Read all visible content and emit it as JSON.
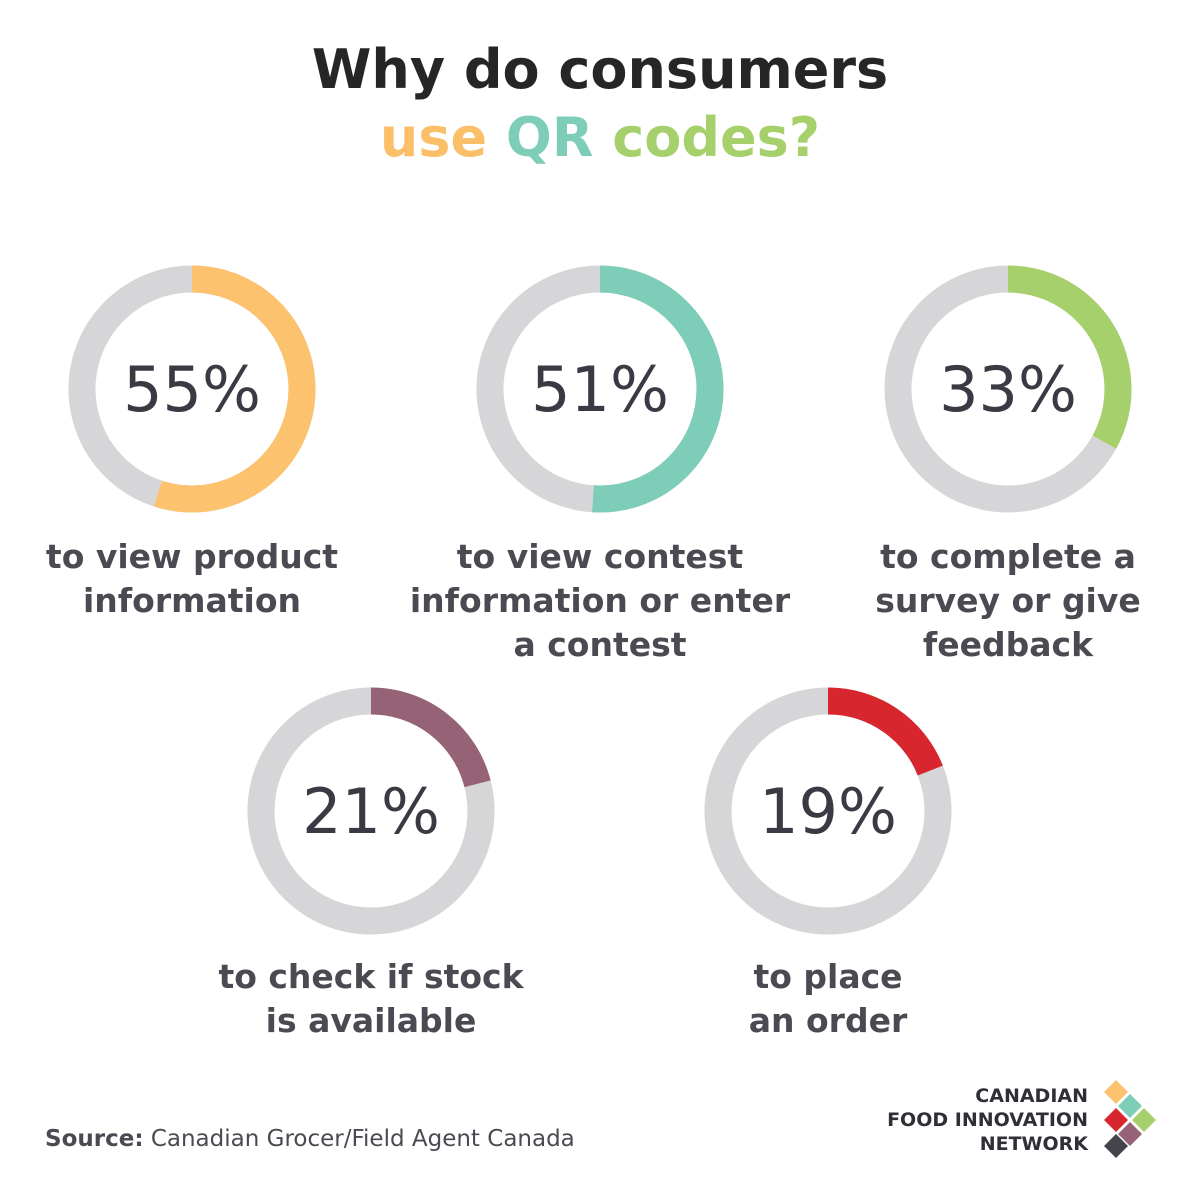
{
  "title": {
    "line1": "Why do consumers",
    "line2_parts": [
      {
        "text": "use",
        "color": "#fbbf6a"
      },
      {
        "text": "QR",
        "color": "#7ecdb8"
      },
      {
        "text": "codes?",
        "color": "#a6d06b"
      }
    ]
  },
  "chart_data": {
    "type": "pie",
    "variant": "donut",
    "items": [
      {
        "value": 55,
        "value_label": "55%",
        "label_lines": [
          "to view product",
          "information"
        ],
        "color": "#fcc26e"
      },
      {
        "value": 51,
        "value_label": "51%",
        "label_lines": [
          "to view contest",
          "information or enter",
          "a contest"
        ],
        "color": "#7ecdb8"
      },
      {
        "value": 33,
        "value_label": "33%",
        "label_lines": [
          "to complete a",
          "survey or give",
          "feedback"
        ],
        "color": "#a6d06b"
      },
      {
        "value": 21,
        "value_label": "21%",
        "label_lines": [
          "to check if stock",
          "is available"
        ],
        "color": "#966376"
      },
      {
        "value": 19,
        "value_label": "19%",
        "label_lines": [
          "to place",
          "an order"
        ],
        "color": "#d8262f"
      }
    ],
    "track_color": "#d6d6d8"
  },
  "source": {
    "label": "Source:",
    "text": "Canadian Grocer/Field Agent Canada"
  },
  "logo": {
    "lines": [
      "CANADIAN",
      "FOOD INNOVATION",
      "NETWORK"
    ],
    "tile_colors": [
      "#fcc26e",
      "#7ecdb8",
      "#d8262f",
      "#a6d06b",
      "#966376",
      "#44444c"
    ]
  }
}
